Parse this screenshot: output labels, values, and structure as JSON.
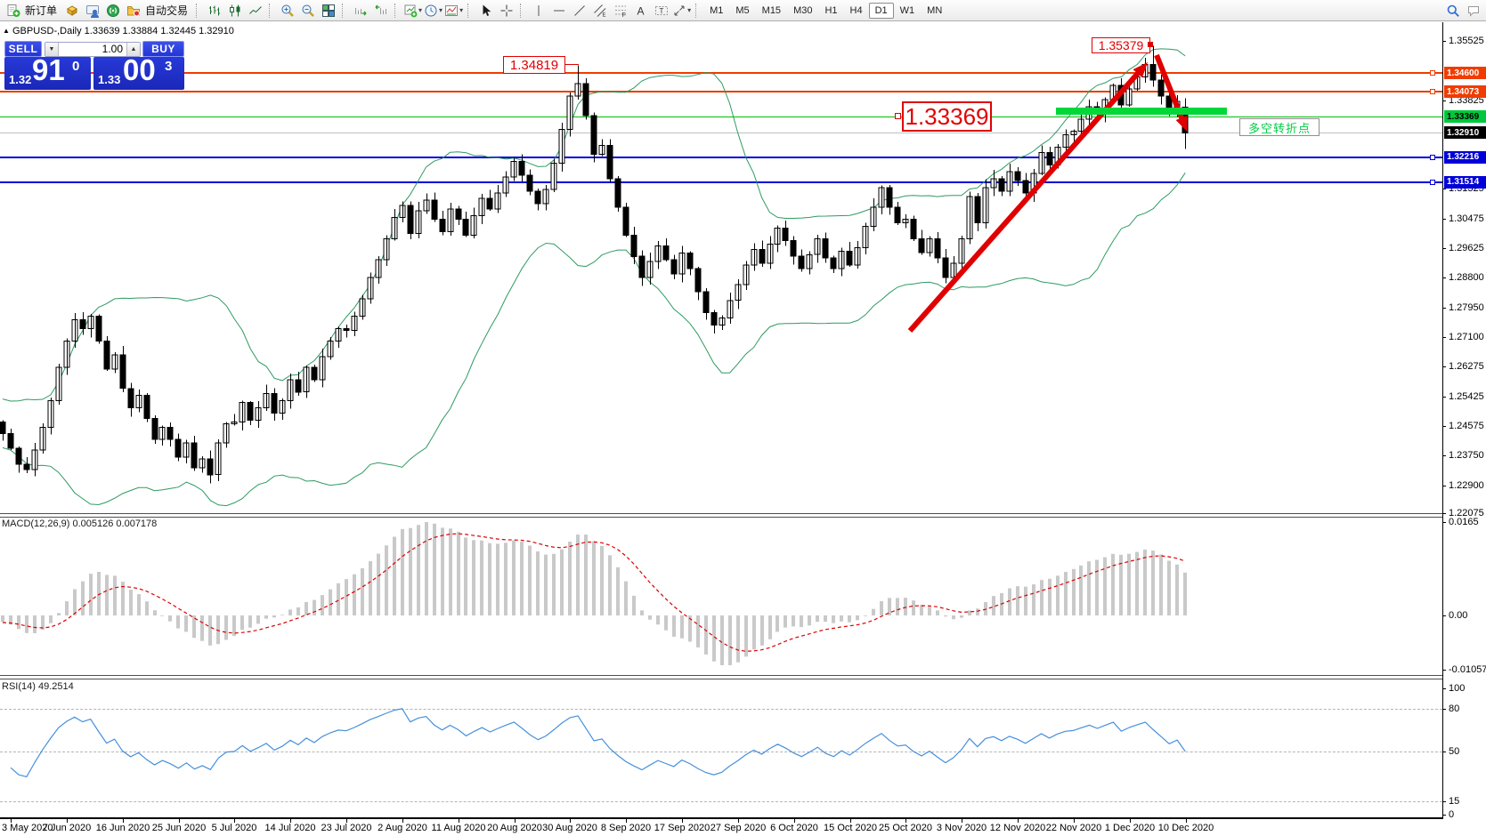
{
  "toolbar": {
    "new_order_label": "新订单",
    "autotrade_label": "自动交易",
    "timeframes": [
      "M1",
      "M5",
      "M15",
      "M30",
      "H1",
      "H4",
      "D1",
      "W1",
      "MN"
    ],
    "active_timeframe": "D1",
    "icons": [
      "new-order-icon",
      "box-icon",
      "profile-icon",
      "signal-icon",
      "autotrade-icon",
      "chart-bars-icon",
      "chart-candles-icon",
      "chart-line-icon",
      "zoom-in-icon",
      "zoom-out-icon",
      "tile-windows-icon",
      "auto-scroll-icon",
      "chart-shift-icon",
      "new-chart-icon",
      "period-clock-icon",
      "indicators-icon",
      "cursor-icon",
      "crosshair-icon",
      "vertical-line-icon",
      "horizontal-line-icon",
      "trendline-icon",
      "channel-icon",
      "fibonacci-icon",
      "text-icon",
      "text-label-icon",
      "arrows-icon",
      "search-icon",
      "chat-icon"
    ]
  },
  "symbol_header": "GBPUSD-,Daily  1.33639 1.33884 1.32445 1.32910",
  "trade_panel": {
    "sell_label": "SELL",
    "buy_label": "BUY",
    "volume": "1.00",
    "sell": {
      "main": "1.32",
      "big": "91",
      "sup": "0"
    },
    "buy": {
      "main": "1.33",
      "big": "00",
      "sup": "3"
    }
  },
  "macd_label": "MACD(12,26,9) 0.005126 0.007178",
  "rsi_label": "RSI(14) 49.2514",
  "annotations": {
    "sep_high": "1.34819",
    "dec_high": "1.35379",
    "pivot": "1.33369",
    "pivot_note": "多空转折点"
  },
  "colors": {
    "bollinger": "#2E9B62",
    "candle_up": "#ffffff",
    "candle_down": "#000000",
    "orange_level": "#F03C00",
    "green_level_line": "#00C000",
    "green_badge": "#00C83C",
    "blue_level": "#0000D8",
    "current_line": "#C0C0C0",
    "current_badge": "#000000",
    "macd_hist": "#C9C9C9",
    "macd_signal": "#DD0000",
    "rsi_line": "#4590DC",
    "annotation_red": "#E00000",
    "pivot_bar_green": "#00D839",
    "panel_blue": "#2133D0"
  },
  "chart_data": {
    "type": "candlestick",
    "symbol": "GBPUSD-",
    "timeframe": "Daily",
    "title": "GBPUSD-,Daily",
    "last_bar": {
      "open": 1.33639,
      "high": 1.33884,
      "low": 1.32445,
      "close": 1.3291
    },
    "ylim": [
      1.2208,
      1.3596
    ],
    "closes": [
      1.2437,
      1.2395,
      1.235,
      1.2335,
      1.239,
      1.2455,
      1.253,
      1.2625,
      1.27,
      1.276,
      1.2735,
      1.277,
      1.27,
      1.262,
      1.266,
      1.2565,
      1.251,
      1.2545,
      1.248,
      1.242,
      1.2455,
      1.242,
      1.237,
      1.241,
      1.234,
      1.2365,
      1.232,
      1.241,
      1.2465,
      1.247,
      1.2525,
      1.2475,
      1.251,
      1.255,
      1.2495,
      1.253,
      1.259,
      1.2555,
      1.2625,
      1.259,
      1.2655,
      1.27,
      1.2735,
      1.273,
      1.277,
      1.282,
      1.288,
      1.293,
      1.299,
      1.305,
      1.3085,
      1.3005,
      1.307,
      1.31,
      1.3045,
      1.301,
      1.3075,
      1.3045,
      1.3,
      1.3055,
      1.3105,
      1.3075,
      1.312,
      1.3165,
      1.321,
      1.317,
      1.3125,
      1.309,
      1.313,
      1.3205,
      1.33,
      1.3395,
      1.343,
      1.334,
      1.323,
      1.3255,
      1.316,
      1.308,
      1.3,
      1.294,
      1.288,
      1.2925,
      1.297,
      1.293,
      1.289,
      1.295,
      1.2905,
      1.284,
      1.278,
      1.2745,
      1.2765,
      1.2815,
      1.286,
      1.2915,
      1.296,
      1.292,
      1.2975,
      1.302,
      1.2985,
      1.294,
      1.2905,
      1.2945,
      1.299,
      1.2935,
      1.2905,
      1.2955,
      1.2915,
      1.2965,
      1.3025,
      1.308,
      1.3135,
      1.308,
      1.3035,
      1.3045,
      1.299,
      1.295,
      1.299,
      1.2935,
      1.288,
      1.292,
      1.299,
      1.311,
      1.3035,
      1.3135,
      1.316,
      1.3125,
      1.318,
      1.3155,
      1.312,
      1.3175,
      1.3235,
      1.32,
      1.325,
      1.3285,
      1.3295,
      1.333,
      1.3365,
      1.3345,
      1.3385,
      1.3425,
      1.337,
      1.3415,
      1.345,
      1.3485,
      1.344,
      1.3395,
      1.3345,
      1.338,
      1.3291
    ],
    "key_highs": [
      {
        "index": 72,
        "price": 1.34819
      },
      {
        "index": 144,
        "price": 1.35379
      }
    ],
    "price_ticks": [
      "1.35525",
      "1.33825",
      "1.31325",
      "1.30475",
      "1.29625",
      "1.28800",
      "1.27950",
      "1.27100",
      "1.26275",
      "1.25425",
      "1.24575",
      "1.23750",
      "1.22900",
      "1.22075"
    ],
    "levels": [
      {
        "price": 1.346,
        "label": "1.34600",
        "color": "#F03C00",
        "text": "#ffffff",
        "lw": 2,
        "handle": true
      },
      {
        "price": 1.34073,
        "label": "1.34073",
        "color": "#F03C00",
        "text": "#ffffff",
        "lw": 2,
        "handle": true
      },
      {
        "price": 1.33369,
        "label": "1.33369",
        "color": "#00C83C",
        "text": "#000000",
        "line": "#00C000",
        "lw": 1,
        "handle": false
      },
      {
        "price": 1.3291,
        "label": "1.32910",
        "color": "#000000",
        "text": "#ffffff",
        "line": "#C0C0C0",
        "lw": 1,
        "handle": false
      },
      {
        "price": 1.32216,
        "label": "1.32216",
        "color": "#0000D8",
        "text": "#ffffff",
        "lw": 2,
        "handle": true
      },
      {
        "price": 1.31514,
        "label": "1.31514",
        "color": "#0000D8",
        "text": "#ffffff",
        "lw": 2,
        "handle": true
      }
    ],
    "bollinger": {
      "period": 20,
      "deviation": 2
    },
    "macd": {
      "fast": 12,
      "slow": 26,
      "signal": 9,
      "axis_labels": [
        "0.0165",
        "0.00",
        "-0.010571"
      ],
      "current_values": [
        "0.005126",
        "0.007178"
      ]
    },
    "rsi": {
      "period": 14,
      "current_value": "49.2514",
      "levels": [
        80,
        50,
        15
      ],
      "axis_labels": [
        "100",
        "80",
        "50",
        "15",
        "0"
      ]
    },
    "dates": [
      "3 May 2020",
      "7 Jun 2020",
      "16 Jun 2020",
      "25 Jun 2020",
      "5 Jul 2020",
      "14 Jul 2020",
      "23 Jul 2020",
      "2 Aug 2020",
      "11 Aug 2020",
      "20 Aug 2020",
      "30 Aug 2020",
      "8 Sep 2020",
      "17 Sep 2020",
      "27 Sep 2020",
      "6 Oct 2020",
      "15 Oct 2020",
      "25 Oct 2020",
      "3 Nov 2020",
      "12 Nov 2020",
      "22 Nov 2020",
      "1 Dec 2020",
      "10 Dec 2020"
    ]
  }
}
